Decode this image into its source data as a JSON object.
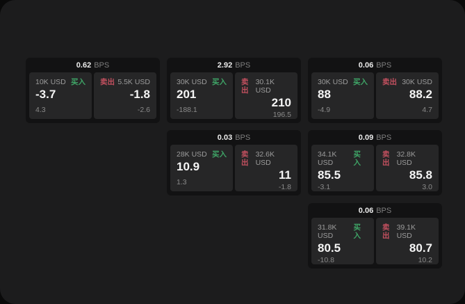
{
  "labels": {
    "bps_unit": "BPS",
    "buy": "买入",
    "sell": "卖出"
  },
  "colors": {
    "buy_green": "#3fa567",
    "sell_red": "#c2505f",
    "window_bg": "#1c1c1d",
    "card_bg": "#121213",
    "panel_bg": "#262627"
  },
  "cards": [
    {
      "bps": "0.62",
      "buy": {
        "size": "10K USD",
        "value": "-3.7",
        "delta": "4.3"
      },
      "sell": {
        "size": "5.5K USD",
        "value": "-1.8",
        "delta": "-2.6"
      }
    },
    {
      "bps": "2.92",
      "buy": {
        "size": "30K USD",
        "value": "201",
        "delta": "-188.1"
      },
      "sell": {
        "size": "30.1K USD",
        "value": "210",
        "delta": "196.5"
      }
    },
    {
      "bps": "0.06",
      "buy": {
        "size": "30K USD",
        "value": "88",
        "delta": "-4.9"
      },
      "sell": {
        "size": "30K USD",
        "value": "88.2",
        "delta": "4.7"
      }
    },
    {
      "bps": "0.03",
      "buy": {
        "size": "28K USD",
        "value": "10.9",
        "delta": "1.3"
      },
      "sell": {
        "size": "32.6K USD",
        "value": "11",
        "delta": "-1.8"
      }
    },
    {
      "bps": "0.09",
      "buy": {
        "size": "34.1K USD",
        "value": "85.5",
        "delta": "-3.1"
      },
      "sell": {
        "size": "32.8K USD",
        "value": "85.8",
        "delta": "3.0"
      }
    },
    {
      "bps": "0.06",
      "buy": {
        "size": "31.8K USD",
        "value": "80.5",
        "delta": "-10.8"
      },
      "sell": {
        "size": "39.1K USD",
        "value": "80.7",
        "delta": "10.2"
      }
    }
  ]
}
